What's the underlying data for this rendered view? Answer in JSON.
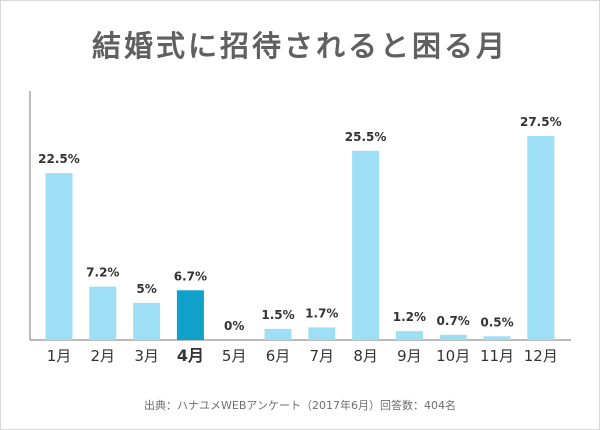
{
  "title": "結婚式に招待されると困る月",
  "source": "出典：ハナユメWEBアンケート（2017年6月）回答数：404名",
  "colors": {
    "bar": "#9fdff5",
    "highlight_bar": "#0fa1c9",
    "axis": "#777777",
    "label": "#333333"
  },
  "chart_data": {
    "type": "bar",
    "categories": [
      "1月",
      "2月",
      "3月",
      "4月",
      "5月",
      "6月",
      "7月",
      "8月",
      "9月",
      "10月",
      "11月",
      "12月"
    ],
    "values": [
      22.5,
      7.2,
      5,
      6.7,
      0,
      1.5,
      1.7,
      25.5,
      1.2,
      0.7,
      0.5,
      27.5
    ],
    "value_labels": [
      "22.5%",
      "7.2%",
      "5%",
      "6.7%",
      "0%",
      "1.5%",
      "1.7%",
      "25.5%",
      "1.2%",
      "0.7%",
      "0.5%",
      "27.5%"
    ],
    "highlight_category": "4月",
    "ylim": [
      0,
      30
    ],
    "grid": false,
    "title": "結婚式に招待されると困る月",
    "xlabel": "",
    "ylabel": ""
  }
}
